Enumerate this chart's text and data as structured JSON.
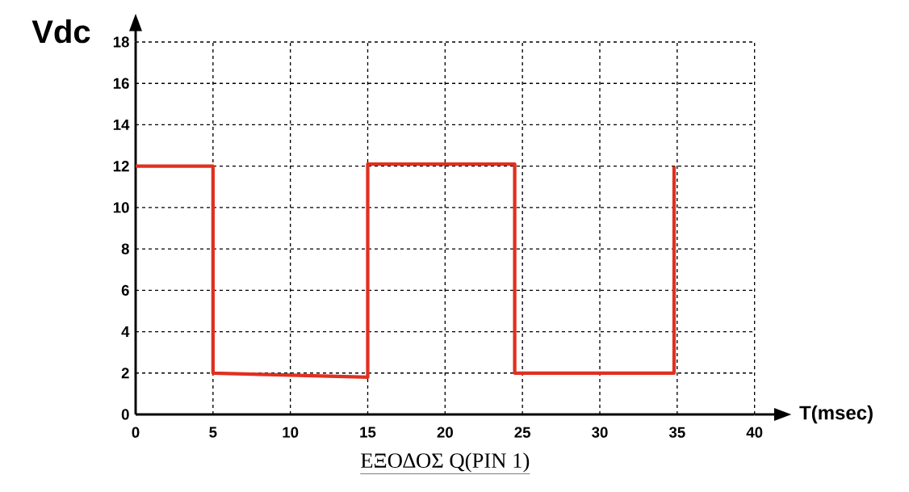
{
  "chart_data": {
    "type": "line",
    "xlabel": "T(msec)",
    "ylabel": "Vdc",
    "annotations": [
      "ΕΞΟΔΟΣ  Q(PIN 1)"
    ],
    "x": [
      0,
      5,
      5,
      15,
      15,
      24.5,
      24.5,
      34.8,
      34.8
    ],
    "values": [
      12,
      12,
      2,
      1.8,
      12.1,
      12.1,
      2,
      2,
      12
    ],
    "color": "#e03020",
    "marker": "none",
    "line_style": "solid",
    "grid": true,
    "xlim": [
      0,
      40
    ],
    "xticks": [
      0,
      5,
      10,
      15,
      20,
      25,
      30,
      35,
      40
    ],
    "ylim": [
      0,
      18
    ],
    "yticks": [
      0,
      2,
      4,
      6,
      8,
      10,
      12,
      14,
      16,
      18
    ]
  }
}
